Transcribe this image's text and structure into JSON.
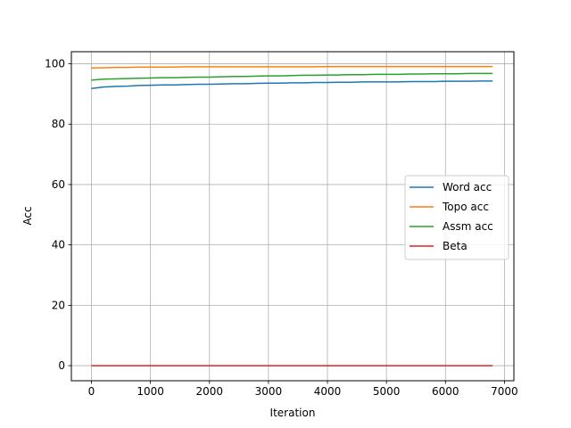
{
  "chart_data": {
    "type": "line",
    "title": "",
    "xlabel": "Iteration",
    "ylabel": "Acc",
    "xlim": [
      -340,
      7160
    ],
    "ylim": [
      -5,
      104
    ],
    "xticks": [
      0,
      1000,
      2000,
      3000,
      4000,
      5000,
      6000,
      7000
    ],
    "yticks": [
      0,
      20,
      40,
      60,
      80,
      100
    ],
    "grid": true,
    "legend_position": "center-right",
    "x": [
      0,
      200,
      400,
      600,
      800,
      1000,
      1200,
      1400,
      1600,
      1800,
      2000,
      2200,
      2400,
      2600,
      2800,
      3000,
      3200,
      3400,
      3600,
      3800,
      4000,
      4200,
      4400,
      4600,
      4800,
      5000,
      5200,
      5400,
      5600,
      5800,
      6000,
      6200,
      6400,
      6600,
      6800
    ],
    "series": [
      {
        "name": "Word acc",
        "color": "#1f77b4",
        "values": [
          91.8,
          92.3,
          92.5,
          92.6,
          92.8,
          92.9,
          93.0,
          93.0,
          93.1,
          93.2,
          93.2,
          93.3,
          93.4,
          93.4,
          93.5,
          93.6,
          93.6,
          93.7,
          93.7,
          93.8,
          93.8,
          93.9,
          93.9,
          94.0,
          94.0,
          94.0,
          94.0,
          94.1,
          94.1,
          94.1,
          94.2,
          94.2,
          94.2,
          94.3,
          94.3
        ]
      },
      {
        "name": "Topo acc",
        "color": "#ff7f0e",
        "values": [
          98.6,
          98.7,
          98.8,
          98.8,
          98.9,
          98.9,
          98.9,
          98.9,
          99.0,
          99.0,
          99.0,
          99.0,
          99.0,
          99.0,
          99.0,
          99.0,
          99.0,
          99.0,
          99.0,
          99.0,
          99.1,
          99.1,
          99.1,
          99.1,
          99.1,
          99.1,
          99.1,
          99.1,
          99.1,
          99.1,
          99.1,
          99.1,
          99.1,
          99.1,
          99.1
        ]
      },
      {
        "name": "Assm acc",
        "color": "#2ca02c",
        "values": [
          94.6,
          94.9,
          95.0,
          95.1,
          95.2,
          95.3,
          95.4,
          95.4,
          95.5,
          95.6,
          95.6,
          95.7,
          95.8,
          95.8,
          95.9,
          96.0,
          96.0,
          96.1,
          96.2,
          96.2,
          96.3,
          96.3,
          96.4,
          96.4,
          96.5,
          96.5,
          96.5,
          96.6,
          96.6,
          96.7,
          96.7,
          96.7,
          96.8,
          96.8,
          96.8
        ]
      },
      {
        "name": "Beta",
        "color": "#d62728",
        "values": [
          0,
          0,
          0,
          0,
          0,
          0,
          0,
          0,
          0,
          0,
          0,
          0,
          0,
          0,
          0,
          0,
          0,
          0,
          0,
          0,
          0,
          0,
          0,
          0,
          0,
          0,
          0,
          0,
          0,
          0,
          0,
          0,
          0,
          0,
          0
        ]
      }
    ]
  }
}
